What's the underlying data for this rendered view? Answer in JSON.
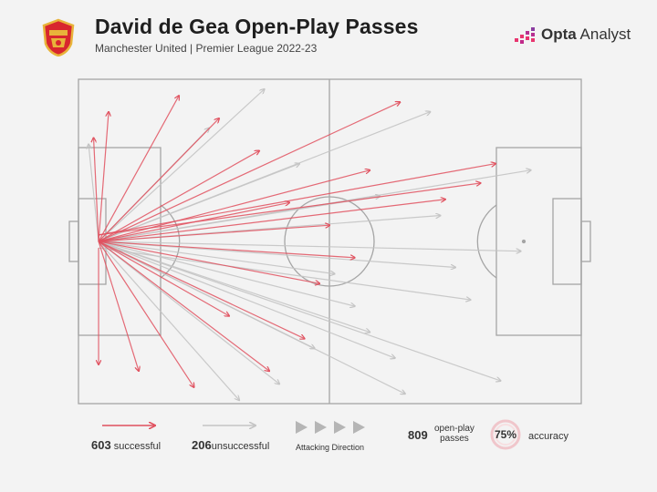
{
  "header": {
    "title": "David de Gea Open-Play Passes",
    "subtitle": "Manchester United | Premier League 2022-23",
    "crest_icon": "manchester-united-crest",
    "brand_prefix": "Opta",
    "brand_suffix": "Analyst"
  },
  "colors": {
    "successful": "#e0505e",
    "unsuccessful": "#c4c4c4",
    "pitch_lines": "#a5a5a5",
    "background": "#f3f3f3"
  },
  "chart_data": {
    "type": "pass-map",
    "x_range": [
      0,
      100
    ],
    "y_range": [
      0,
      100
    ],
    "successful_count": "603",
    "successful_label": "successful",
    "unsuccessful_count": "206",
    "unsuccessful_label": "unsuccessful",
    "total_count": "809",
    "total_label_line1": "open-play",
    "total_label_line2": "passes",
    "accuracy": "75%",
    "accuracy_label": "accuracy",
    "direction_label": "Attacking Direction",
    "sample_passes": [
      {
        "x1": 4,
        "y1": 50,
        "x2": 88,
        "y2": 53,
        "outcome": "unsuccessful"
      },
      {
        "x1": 4,
        "y1": 50,
        "x2": 84,
        "y2": 93,
        "outcome": "unsuccessful"
      },
      {
        "x1": 4,
        "y1": 52,
        "x2": 78,
        "y2": 68,
        "outcome": "unsuccessful"
      },
      {
        "x1": 4,
        "y1": 50,
        "x2": 65,
        "y2": 97,
        "outcome": "unsuccessful"
      },
      {
        "x1": 4,
        "y1": 50,
        "x2": 58,
        "y2": 78,
        "outcome": "unsuccessful"
      },
      {
        "x1": 4,
        "y1": 50,
        "x2": 32,
        "y2": 99,
        "outcome": "unsuccessful"
      },
      {
        "x1": 4,
        "y1": 50,
        "x2": 2,
        "y2": 20,
        "outcome": "unsuccessful"
      },
      {
        "x1": 4,
        "y1": 50,
        "x2": 26,
        "y2": 15,
        "outcome": "unsuccessful"
      },
      {
        "x1": 4,
        "y1": 50,
        "x2": 72,
        "y2": 42,
        "outcome": "unsuccessful"
      },
      {
        "x1": 4,
        "y1": 50,
        "x2": 51,
        "y2": 60,
        "outcome": "unsuccessful"
      },
      {
        "x1": 4,
        "y1": 50,
        "x2": 44,
        "y2": 26,
        "outcome": "unsuccessful"
      },
      {
        "x1": 4,
        "y1": 50,
        "x2": 90,
        "y2": 28,
        "outcome": "unsuccessful"
      },
      {
        "x1": 4,
        "y1": 50,
        "x2": 63,
        "y2": 86,
        "outcome": "unsuccessful"
      },
      {
        "x1": 4,
        "y1": 50,
        "x2": 40,
        "y2": 94,
        "outcome": "unsuccessful"
      },
      {
        "x1": 4,
        "y1": 50,
        "x2": 37,
        "y2": 3,
        "outcome": "unsuccessful"
      },
      {
        "x1": 4,
        "y1": 50,
        "x2": 70,
        "y2": 10,
        "outcome": "unsuccessful"
      },
      {
        "x1": 4,
        "y1": 50,
        "x2": 55,
        "y2": 70,
        "outcome": "unsuccessful"
      },
      {
        "x1": 4,
        "y1": 50,
        "x2": 60,
        "y2": 36,
        "outcome": "unsuccessful"
      },
      {
        "x1": 4,
        "y1": 50,
        "x2": 47,
        "y2": 83,
        "outcome": "unsuccessful"
      },
      {
        "x1": 4,
        "y1": 50,
        "x2": 75,
        "y2": 58,
        "outcome": "unsuccessful"
      },
      {
        "x1": 4,
        "y1": 48,
        "x2": 83,
        "y2": 26,
        "outcome": "successful"
      },
      {
        "x1": 4,
        "y1": 48,
        "x2": 80,
        "y2": 32,
        "outcome": "successful"
      },
      {
        "x1": 4,
        "y1": 50,
        "x2": 73,
        "y2": 37,
        "outcome": "successful"
      },
      {
        "x1": 4,
        "y1": 50,
        "x2": 64,
        "y2": 7,
        "outcome": "successful"
      },
      {
        "x1": 4,
        "y1": 50,
        "x2": 58,
        "y2": 28,
        "outcome": "successful"
      },
      {
        "x1": 4,
        "y1": 50,
        "x2": 6,
        "y2": 10,
        "outcome": "successful"
      },
      {
        "x1": 4,
        "y1": 50,
        "x2": 3,
        "y2": 18,
        "outcome": "successful"
      },
      {
        "x1": 4,
        "y1": 52,
        "x2": 4,
        "y2": 88,
        "outcome": "successful"
      },
      {
        "x1": 4,
        "y1": 50,
        "x2": 12,
        "y2": 90,
        "outcome": "successful"
      },
      {
        "x1": 4,
        "y1": 50,
        "x2": 23,
        "y2": 95,
        "outcome": "successful"
      },
      {
        "x1": 4,
        "y1": 50,
        "x2": 55,
        "y2": 55,
        "outcome": "successful"
      },
      {
        "x1": 4,
        "y1": 50,
        "x2": 50,
        "y2": 45,
        "outcome": "successful"
      },
      {
        "x1": 4,
        "y1": 50,
        "x2": 48,
        "y2": 63,
        "outcome": "successful"
      },
      {
        "x1": 4,
        "y1": 50,
        "x2": 45,
        "y2": 80,
        "outcome": "successful"
      },
      {
        "x1": 4,
        "y1": 50,
        "x2": 38,
        "y2": 90,
        "outcome": "successful"
      },
      {
        "x1": 4,
        "y1": 50,
        "x2": 30,
        "y2": 73,
        "outcome": "successful"
      },
      {
        "x1": 4,
        "y1": 50,
        "x2": 36,
        "y2": 22,
        "outcome": "successful"
      },
      {
        "x1": 4,
        "y1": 50,
        "x2": 28,
        "y2": 12,
        "outcome": "successful"
      },
      {
        "x1": 4,
        "y1": 50,
        "x2": 20,
        "y2": 5,
        "outcome": "successful"
      },
      {
        "x1": 4,
        "y1": 50,
        "x2": 42,
        "y2": 38,
        "outcome": "successful"
      }
    ]
  }
}
